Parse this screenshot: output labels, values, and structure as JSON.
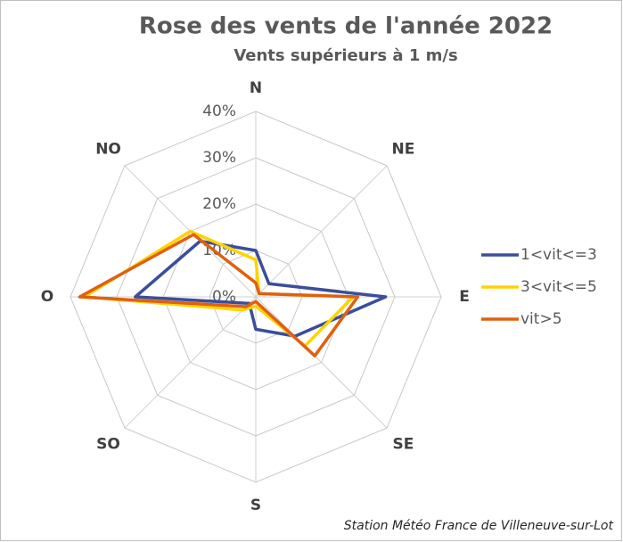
{
  "chart_data": {
    "type": "radar",
    "title": "Rose des vents de l'année 2022",
    "subtitle": "Vents supérieurs à 1 m/s",
    "categories": [
      "N",
      "NE",
      "E",
      "SE",
      "S",
      "SO",
      "O",
      "NO"
    ],
    "series": [
      {
        "name": "1<vit<=3",
        "color": "#3a4e9c",
        "values": [
          10,
          4,
          28,
          12,
          7,
          2,
          26,
          17
        ]
      },
      {
        "name": "3<vit<=5",
        "color": "#ffd200",
        "values": [
          8,
          1,
          21,
          15,
          2,
          4,
          37,
          20
        ]
      },
      {
        "name": "vit>5",
        "color": "#e0600f",
        "values": [
          3,
          1,
          22,
          18,
          1,
          3,
          38,
          19
        ]
      }
    ],
    "ylim": [
      0,
      40
    ],
    "yticks": [
      {
        "value": 0,
        "label": "0%"
      },
      {
        "value": 10,
        "label": "10%"
      },
      {
        "value": 20,
        "label": "20%"
      },
      {
        "value": 30,
        "label": "30%"
      },
      {
        "value": 40,
        "label": "40%"
      }
    ],
    "grid": true,
    "legend": "right",
    "annotation": "Station Météo France de Villeneuve-sur-Lot"
  }
}
